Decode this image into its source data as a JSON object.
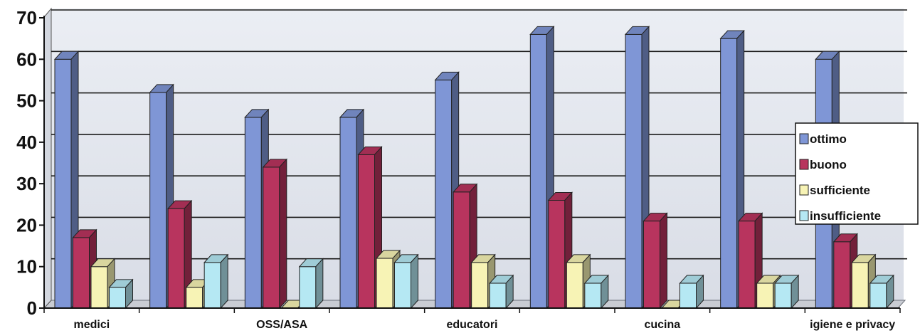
{
  "chart_data": {
    "type": "bar",
    "categories": [
      "medici",
      "",
      "OSS/ASA",
      "",
      "educatori",
      "",
      "cucina",
      "",
      "igiene e privacy"
    ],
    "series": [
      {
        "name": "ottimo",
        "color": "#7f96d6",
        "values": [
          60,
          52,
          46,
          46,
          55,
          66,
          66,
          65,
          60
        ]
      },
      {
        "name": "buono",
        "color": "#b8345e",
        "values": [
          17,
          24,
          34,
          37,
          28,
          26,
          21,
          21,
          16
        ]
      },
      {
        "name": "sufficiente",
        "color": "#f7f3b5",
        "values": [
          10,
          5,
          0,
          12,
          11,
          11,
          0,
          6,
          11
        ]
      },
      {
        "name": "insufficiente",
        "color": "#b5e8f3",
        "values": [
          5,
          11,
          10,
          11,
          6,
          6,
          6,
          6,
          6
        ]
      }
    ],
    "y_ticks": [
      "0",
      "10",
      "20",
      "30",
      "40",
      "50",
      "60",
      "70"
    ],
    "ylim": [
      0,
      70
    ],
    "grid": true,
    "legend_position": "right"
  }
}
